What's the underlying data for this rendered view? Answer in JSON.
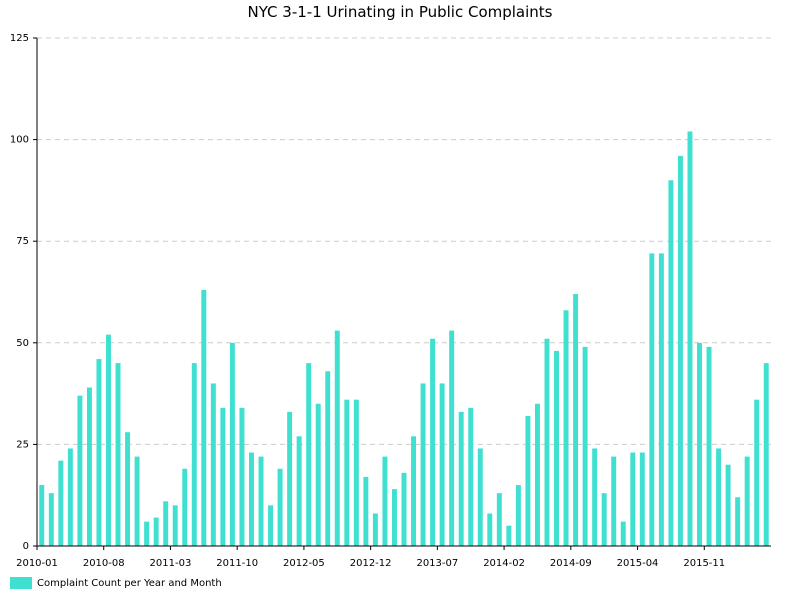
{
  "chart_data": {
    "type": "bar",
    "title": "NYC 3-1-1 Urinating in Public Complaints",
    "xlabel": "",
    "ylabel": "",
    "ylim": [
      0,
      125
    ],
    "yticks": [
      0,
      25,
      50,
      75,
      100,
      125
    ],
    "grid": true,
    "legend_position": "bottom-left",
    "colors": {
      "bar": "#40E0D0",
      "grid": "#cccccc",
      "axis": "#000000"
    },
    "categories": [
      "2010-01",
      "2010-02",
      "2010-03",
      "2010-04",
      "2010-05",
      "2010-06",
      "2010-07",
      "2010-08",
      "2010-09",
      "2010-10",
      "2010-11",
      "2010-12",
      "2011-01",
      "2011-02",
      "2011-03",
      "2011-04",
      "2011-05",
      "2011-06",
      "2011-07",
      "2011-08",
      "2011-09",
      "2011-10",
      "2011-11",
      "2011-12",
      "2012-01",
      "2012-02",
      "2012-03",
      "2012-04",
      "2012-05",
      "2012-06",
      "2012-07",
      "2012-08",
      "2012-09",
      "2012-10",
      "2012-11",
      "2012-12",
      "2013-01",
      "2013-02",
      "2013-03",
      "2013-04",
      "2013-05",
      "2013-06",
      "2013-07",
      "2013-08",
      "2013-09",
      "2013-10",
      "2013-11",
      "2013-12",
      "2014-01",
      "2014-02",
      "2014-03",
      "2014-04",
      "2014-05",
      "2014-06",
      "2014-07",
      "2014-08",
      "2014-09",
      "2014-10",
      "2014-11",
      "2014-12",
      "2015-01",
      "2015-02",
      "2015-03",
      "2015-04",
      "2015-05",
      "2015-06",
      "2015-07",
      "2015-08",
      "2015-09",
      "2015-10",
      "2015-11",
      "2015-12",
      "2016-01",
      "2016-02",
      "2016-03",
      "2016-04",
      "2016-05"
    ],
    "tick_labels": [
      "2010-01",
      "2010-08",
      "2011-03",
      "2011-10",
      "2012-05",
      "2012-12",
      "2013-07",
      "2014-02",
      "2014-09",
      "2015-04",
      "2015-11"
    ],
    "series": [
      {
        "name": "Complaint Count per Year and Month",
        "values": [
          15,
          13,
          21,
          24,
          37,
          39,
          46,
          52,
          45,
          28,
          22,
          6,
          7,
          11,
          10,
          19,
          45,
          63,
          40,
          34,
          50,
          34,
          23,
          22,
          10,
          19,
          33,
          27,
          45,
          35,
          43,
          53,
          36,
          36,
          17,
          8,
          22,
          14,
          18,
          27,
          40,
          51,
          40,
          53,
          33,
          34,
          24,
          8,
          13,
          5,
          15,
          32,
          35,
          51,
          48,
          58,
          62,
          49,
          24,
          13,
          22,
          6,
          23,
          23,
          72,
          72,
          90,
          96,
          102,
          50,
          49,
          24,
          20,
          12,
          22,
          36,
          45
        ]
      }
    ]
  }
}
